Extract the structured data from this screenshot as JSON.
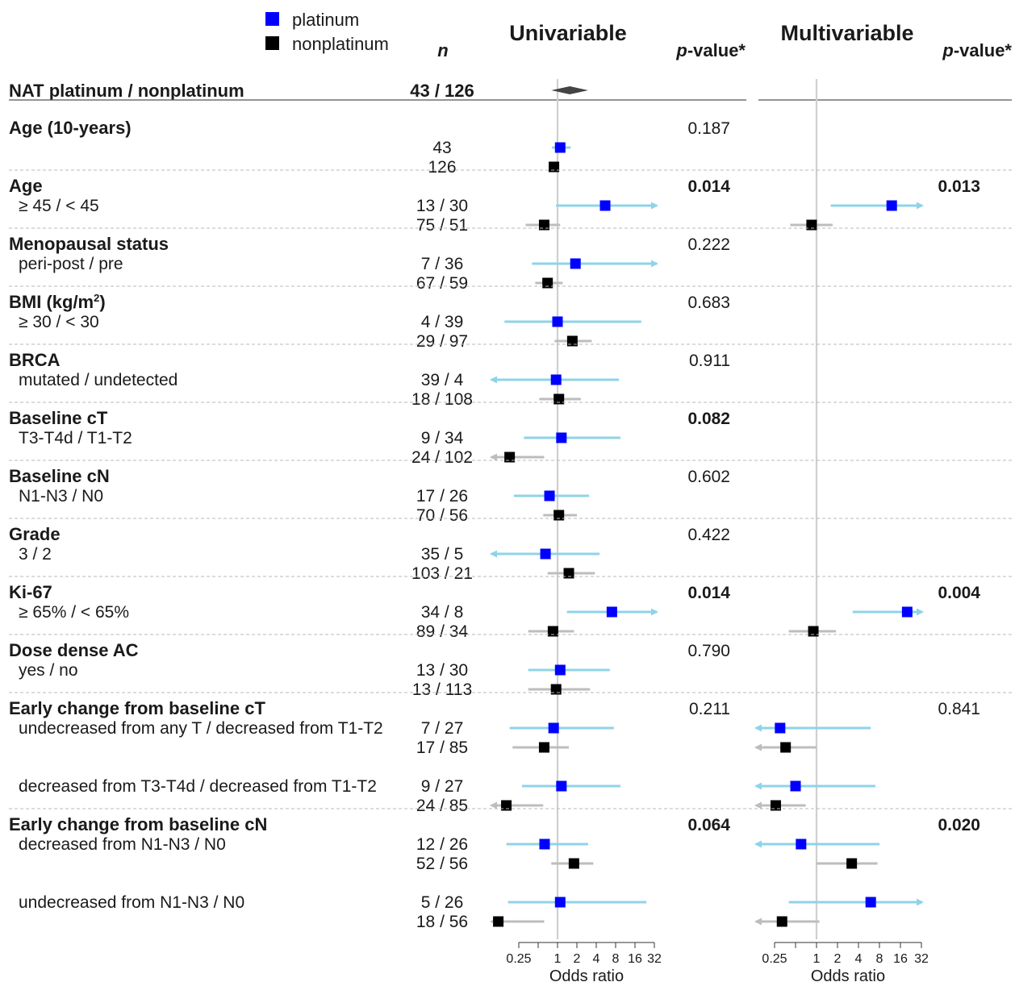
{
  "legend": {
    "platinum_label": "platinum",
    "nonplatinum_label": "nonplatinum",
    "platinum_color": "#0000ff",
    "nonplatinum_color": "#000000"
  },
  "headers": {
    "n": "n",
    "univariable": "Univariable",
    "multivariable": "Multivariable",
    "pvalue_p": "p",
    "pvalue_rest": "-value*"
  },
  "overall": {
    "label": "NAT  platinum / nonplatinum",
    "n": "43 / 126"
  },
  "axis": {
    "label": "Odds ratio",
    "ticks": [
      0.25,
      1,
      2,
      4,
      8,
      16,
      32
    ],
    "tick_labels": [
      "0.25",
      "1",
      "2",
      "4",
      "8",
      "16",
      "32"
    ],
    "scale": "log2"
  },
  "colors": {
    "platinum_ci": "#8fd3e8",
    "nonplatinum_ci": "#bdbdbd",
    "reference_line": "#cfcfcf",
    "diamond": "#444444",
    "separator": "#b8b8b8"
  },
  "chart_data": {
    "type": "forest",
    "overall": {
      "uni": {
        "or": 1.55,
        "lo": 0.8,
        "hi": 3.0
      }
    },
    "groups": [
      {
        "title": "Age (10-years)",
        "p_uni": "0.187",
        "p_uni_bold": false,
        "p_multi": "",
        "p_multi_bold": false,
        "rows": [
          {
            "label": "",
            "platinum_n": "43",
            "nonplatinum_n": "126",
            "platinum": {
              "or": 1.1,
              "lo": 0.82,
              "hi": 1.6,
              "ml": false,
              "mr": false
            },
            "nonplatinum": {
              "or": 0.88,
              "lo": 0.78,
              "hi": 1.0,
              "ml": false,
              "mr": false
            }
          }
        ]
      },
      {
        "title": "Age",
        "p_uni": "0.014",
        "p_uni_bold": true,
        "p_multi": "0.013",
        "p_multi_bold": true,
        "rows": [
          {
            "label": "≥ 45 / < 45",
            "platinum_n": "13 / 30",
            "nonplatinum_n": "75 / 51",
            "platinum": {
              "or": 5.5,
              "lo": 0.95,
              "hi": 32,
              "ml": false,
              "mr": true
            },
            "nonplatinum": {
              "or": 0.62,
              "lo": 0.32,
              "hi": 1.1,
              "ml": false,
              "mr": false
            },
            "multi_platinum": {
              "or": 12,
              "lo": 1.6,
              "hi": 32,
              "ml": false,
              "mr": true
            },
            "multi_nonplatinum": {
              "or": 0.85,
              "lo": 0.42,
              "hi": 1.7,
              "ml": false,
              "mr": false
            }
          }
        ]
      },
      {
        "title": "Menopausal status",
        "p_uni": "0.222",
        "p_uni_bold": false,
        "p_multi": "",
        "p_multi_bold": false,
        "rows": [
          {
            "label": "peri-post / pre",
            "platinum_n": "7 / 36",
            "nonplatinum_n": "67 / 59",
            "platinum": {
              "or": 1.9,
              "lo": 0.4,
              "hi": 32,
              "ml": false,
              "mr": true
            },
            "nonplatinum": {
              "or": 0.7,
              "lo": 0.45,
              "hi": 1.2,
              "ml": false,
              "mr": false
            }
          }
        ]
      },
      {
        "title": "BMI (kg/m",
        "title_sup": "2",
        "title_close": ")",
        "p_uni": "0.683",
        "p_uni_bold": false,
        "p_multi": "",
        "p_multi_bold": false,
        "rows": [
          {
            "label": "≥ 30 / < 30",
            "platinum_n": "4 / 39",
            "nonplatinum_n": "29 / 97",
            "platinum": {
              "or": 1.0,
              "lo": 0.15,
              "hi": 20,
              "ml": false,
              "mr": false
            },
            "nonplatinum": {
              "or": 1.7,
              "lo": 0.9,
              "hi": 3.4,
              "ml": false,
              "mr": false
            }
          }
        ]
      },
      {
        "title": "BRCA",
        "p_uni": "0.911",
        "p_uni_bold": false,
        "p_multi": "",
        "p_multi_bold": false,
        "rows": [
          {
            "label": "mutated / undetected",
            "platinum_n": "39 / 4",
            "nonplatinum_n": "18 / 108",
            "platinum": {
              "or": 0.95,
              "lo": 0.1,
              "hi": 9,
              "ml": true,
              "mr": false
            },
            "nonplatinum": {
              "or": 1.05,
              "lo": 0.52,
              "hi": 2.3,
              "ml": false,
              "mr": false
            }
          }
        ]
      },
      {
        "title": "Baseline cT",
        "p_uni": "0.082",
        "p_uni_bold": true,
        "p_multi": "",
        "p_multi_bold": false,
        "rows": [
          {
            "label": "T3-T4d / T1-T2",
            "platinum_n": "9 / 34",
            "nonplatinum_n": "24 / 102",
            "platinum": {
              "or": 1.15,
              "lo": 0.3,
              "hi": 9.5,
              "ml": false,
              "mr": false
            },
            "nonplatinum": {
              "or": 0.18,
              "lo": 0.1,
              "hi": 0.62,
              "ml": true,
              "mr": false
            }
          }
        ]
      },
      {
        "title": "Baseline cN",
        "p_uni": "0.602",
        "p_uni_bold": false,
        "p_multi": "",
        "p_multi_bold": false,
        "rows": [
          {
            "label": "N1-N3 / N0",
            "platinum_n": "17 / 26",
            "nonplatinum_n": "70 / 56",
            "platinum": {
              "or": 0.75,
              "lo": 0.21,
              "hi": 3.1,
              "ml": false,
              "mr": false
            },
            "nonplatinum": {
              "or": 1.05,
              "lo": 0.6,
              "hi": 2.0,
              "ml": false,
              "mr": false
            }
          }
        ]
      },
      {
        "title": "Grade",
        "p_uni": "0.422",
        "p_uni_bold": false,
        "p_multi": "",
        "p_multi_bold": false,
        "rows": [
          {
            "label": "3 / 2",
            "platinum_n": "35 / 5",
            "nonplatinum_n": "103 / 21",
            "platinum": {
              "or": 0.65,
              "lo": 0.1,
              "hi": 4.5,
              "ml": true,
              "mr": false
            },
            "nonplatinum": {
              "or": 1.5,
              "lo": 0.7,
              "hi": 3.8,
              "ml": false,
              "mr": false
            }
          }
        ]
      },
      {
        "title": "Ki-67",
        "p_uni": "0.014",
        "p_uni_bold": true,
        "p_multi": "0.004",
        "p_multi_bold": true,
        "rows": [
          {
            "label": "≥ 65% / < 65%",
            "platinum_n": "34 / 8",
            "nonplatinum_n": "89 / 34",
            "platinum": {
              "or": 7,
              "lo": 1.4,
              "hi": 32,
              "ml": false,
              "mr": true
            },
            "nonplatinum": {
              "or": 0.85,
              "lo": 0.35,
              "hi": 1.8,
              "ml": false,
              "mr": false
            },
            "multi_platinum": {
              "or": 20,
              "lo": 3.3,
              "hi": 32,
              "ml": false,
              "mr": true
            },
            "multi_nonplatinum": {
              "or": 0.9,
              "lo": 0.4,
              "hi": 1.9,
              "ml": false,
              "mr": false
            }
          }
        ]
      },
      {
        "title": "Dose dense AC",
        "p_uni": "0.790",
        "p_uni_bold": false,
        "p_multi": "",
        "p_multi_bold": false,
        "rows": [
          {
            "label": "yes / no",
            "platinum_n": "13 / 30",
            "nonplatinum_n": "13 / 113",
            "platinum": {
              "or": 1.1,
              "lo": 0.35,
              "hi": 6.5,
              "ml": false,
              "mr": false
            },
            "nonplatinum": {
              "or": 0.95,
              "lo": 0.35,
              "hi": 3.2,
              "ml": false,
              "mr": false
            }
          }
        ]
      },
      {
        "title": "Early change from baseline cT",
        "p_uni": "0.211",
        "p_uni_bold": false,
        "p_multi": "0.841",
        "p_multi_bold": false,
        "rows": [
          {
            "label": "undecreased from any T / decreased from T1-T2",
            "platinum_n": "7 / 27",
            "nonplatinum_n": "17 / 85",
            "platinum": {
              "or": 0.87,
              "lo": 0.18,
              "hi": 7.5,
              "ml": false,
              "mr": false
            },
            "nonplatinum": {
              "or": 0.62,
              "lo": 0.2,
              "hi": 1.5,
              "ml": false,
              "mr": false
            },
            "multi_platinum": {
              "or": 0.3,
              "lo": 0.14,
              "hi": 6,
              "ml": true,
              "mr": false
            },
            "multi_nonplatinum": {
              "or": 0.36,
              "lo": 0.14,
              "hi": 1.0,
              "ml": true,
              "mr": false
            }
          },
          {
            "label": "decreased from T3-T4d / decreased from T1-T2",
            "platinum_n": "9 / 27",
            "nonplatinum_n": "24 / 85",
            "platinum": {
              "or": 1.15,
              "lo": 0.28,
              "hi": 9.5,
              "ml": false,
              "mr": false
            },
            "nonplatinum": {
              "or": 0.16,
              "lo": 0.1,
              "hi": 0.6,
              "ml": true,
              "mr": false
            },
            "multi_platinum": {
              "or": 0.5,
              "lo": 0.14,
              "hi": 7,
              "ml": true,
              "mr": false
            },
            "multi_nonplatinum": {
              "or": 0.26,
              "lo": 0.14,
              "hi": 0.7,
              "ml": true,
              "mr": false
            }
          }
        ]
      },
      {
        "title": "Early change from baseline cN",
        "p_uni": "0.064",
        "p_uni_bold": true,
        "p_multi": "0.020",
        "p_multi_bold": true,
        "rows": [
          {
            "label": "decreased from N1-N3 / N0",
            "platinum_n": "12 / 26",
            "nonplatinum_n": "52 / 56",
            "platinum": {
              "or": 0.63,
              "lo": 0.16,
              "hi": 3,
              "ml": false,
              "mr": false
            },
            "nonplatinum": {
              "or": 1.8,
              "lo": 0.8,
              "hi": 3.6,
              "ml": false,
              "mr": false
            },
            "multi_platinum": {
              "or": 0.6,
              "lo": 0.14,
              "hi": 8,
              "ml": true,
              "mr": false
            },
            "multi_nonplatinum": {
              "or": 3.2,
              "lo": 1.0,
              "hi": 7.5,
              "ml": false,
              "mr": false
            }
          },
          {
            "label": "undecreased from N1-N3 / N0",
            "platinum_n": "5 / 26",
            "nonplatinum_n": "18 / 56",
            "platinum": {
              "or": 1.1,
              "lo": 0.17,
              "hi": 24,
              "ml": false,
              "mr": false
            },
            "nonplatinum": {
              "or": 0.12,
              "lo": 0.1,
              "hi": 0.62,
              "ml": true,
              "mr": false
            },
            "multi_platinum": {
              "or": 6,
              "lo": 0.4,
              "hi": 32,
              "ml": false,
              "mr": true
            },
            "multi_nonplatinum": {
              "or": 0.32,
              "lo": 0.14,
              "hi": 1.1,
              "ml": true,
              "mr": false
            }
          }
        ]
      }
    ]
  }
}
